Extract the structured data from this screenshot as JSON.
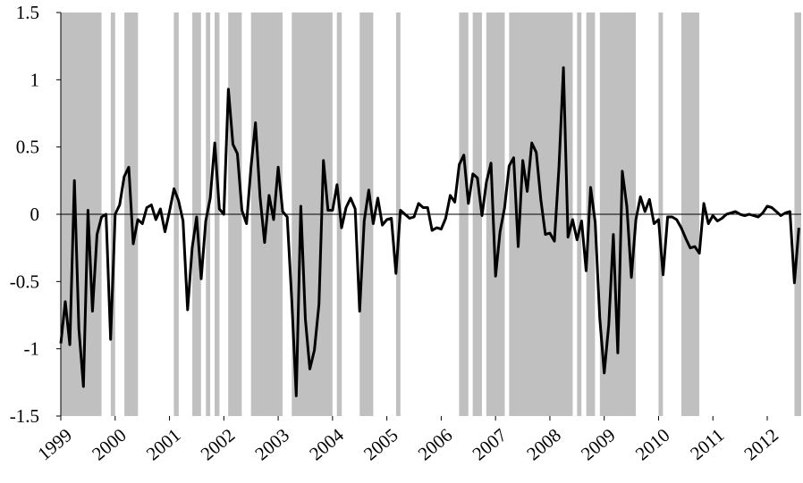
{
  "chart_data": {
    "type": "line",
    "title": "",
    "xlabel": "",
    "ylabel": "",
    "ylim": [
      -1.5,
      1.5
    ],
    "xlim": [
      1999.0,
      2012.625
    ],
    "y_ticks": [
      "1.5",
      "1",
      "0.5",
      "0",
      "-0.5",
      "-1",
      "-1.5"
    ],
    "y_tick_values": [
      1.5,
      1,
      0.5,
      0,
      -0.5,
      -1,
      -1.5
    ],
    "x_tick_labels": [
      "1999",
      "2000",
      "2001",
      "2002",
      "2003",
      "2004",
      "2005",
      "2006",
      "2007",
      "2008",
      "2009",
      "2010",
      "2011",
      "2012"
    ],
    "x_tick_values": [
      1999,
      2000,
      2001,
      2002,
      2003,
      2004,
      2005,
      2006,
      2007,
      2008,
      2009,
      2010,
      2011,
      2012
    ],
    "grid": false,
    "legend": "none",
    "colors": {
      "line": "#000000",
      "shading": "#c0c0c0",
      "background": "#ffffff"
    },
    "shaded_periods": [
      [
        1999.0,
        1999.75
      ],
      [
        1999.92,
        2000.0
      ],
      [
        2000.17,
        2000.42
      ],
      [
        2001.08,
        2001.17
      ],
      [
        2001.42,
        2001.58
      ],
      [
        2001.67,
        2001.75
      ],
      [
        2001.83,
        2001.92
      ],
      [
        2002.08,
        2002.33
      ],
      [
        2002.5,
        2003.08
      ],
      [
        2003.25,
        2004.0
      ],
      [
        2004.08,
        2004.17
      ],
      [
        2004.5,
        2004.75
      ],
      [
        2005.17,
        2005.25
      ],
      [
        2006.33,
        2006.5
      ],
      [
        2006.58,
        2006.75
      ],
      [
        2006.83,
        2007.17
      ],
      [
        2007.25,
        2008.42
      ],
      [
        2008.5,
        2008.58
      ],
      [
        2008.67,
        2008.83
      ],
      [
        2008.92,
        2009.58
      ],
      [
        2010.0,
        2010.08
      ],
      [
        2010.42,
        2010.75
      ],
      [
        2012.5,
        2012.625
      ]
    ],
    "series": [
      {
        "values": [
          [
            1999.0,
            -0.96
          ],
          [
            1999.083,
            -0.65
          ],
          [
            1999.167,
            -0.97
          ],
          [
            1999.25,
            0.25
          ],
          [
            1999.333,
            -0.85
          ],
          [
            1999.417,
            -1.28
          ],
          [
            1999.5,
            0.03
          ],
          [
            1999.583,
            -0.72
          ],
          [
            1999.667,
            -0.15
          ],
          [
            1999.75,
            -0.02
          ],
          [
            1999.833,
            0.0
          ],
          [
            1999.917,
            -0.93
          ],
          [
            2000.0,
            0.0
          ],
          [
            2000.083,
            0.07
          ],
          [
            2000.167,
            0.28
          ],
          [
            2000.25,
            0.35
          ],
          [
            2000.333,
            -0.22
          ],
          [
            2000.417,
            -0.04
          ],
          [
            2000.5,
            -0.07
          ],
          [
            2000.583,
            0.05
          ],
          [
            2000.667,
            0.07
          ],
          [
            2000.75,
            -0.04
          ],
          [
            2000.833,
            0.04
          ],
          [
            2000.917,
            -0.13
          ],
          [
            2001.0,
            0.02
          ],
          [
            2001.083,
            0.19
          ],
          [
            2001.167,
            0.1
          ],
          [
            2001.25,
            -0.05
          ],
          [
            2001.333,
            -0.71
          ],
          [
            2001.417,
            -0.25
          ],
          [
            2001.5,
            -0.02
          ],
          [
            2001.583,
            -0.48
          ],
          [
            2001.667,
            -0.05
          ],
          [
            2001.75,
            0.12
          ],
          [
            2001.833,
            0.53
          ],
          [
            2001.917,
            0.04
          ],
          [
            2002.0,
            0.0
          ],
          [
            2002.083,
            0.93
          ],
          [
            2002.167,
            0.52
          ],
          [
            2002.25,
            0.45
          ],
          [
            2002.333,
            0.03
          ],
          [
            2002.417,
            -0.07
          ],
          [
            2002.5,
            0.35
          ],
          [
            2002.583,
            0.68
          ],
          [
            2002.667,
            0.13
          ],
          [
            2002.75,
            -0.21
          ],
          [
            2002.833,
            0.14
          ],
          [
            2002.917,
            -0.04
          ],
          [
            2003.0,
            0.35
          ],
          [
            2003.083,
            0.02
          ],
          [
            2003.167,
            -0.02
          ],
          [
            2003.25,
            -0.64
          ],
          [
            2003.333,
            -1.35
          ],
          [
            2003.417,
            0.06
          ],
          [
            2003.5,
            -0.78
          ],
          [
            2003.583,
            -1.15
          ],
          [
            2003.667,
            -1.01
          ],
          [
            2003.75,
            -0.67
          ],
          [
            2003.833,
            0.4
          ],
          [
            2003.917,
            0.03
          ],
          [
            2004.0,
            0.03
          ],
          [
            2004.083,
            0.22
          ],
          [
            2004.167,
            -0.1
          ],
          [
            2004.25,
            0.05
          ],
          [
            2004.333,
            0.12
          ],
          [
            2004.417,
            0.04
          ],
          [
            2004.5,
            -0.72
          ],
          [
            2004.583,
            -0.05
          ],
          [
            2004.667,
            0.18
          ],
          [
            2004.75,
            -0.07
          ],
          [
            2004.833,
            0.12
          ],
          [
            2004.917,
            -0.08
          ],
          [
            2005.0,
            -0.04
          ],
          [
            2005.083,
            -0.03
          ],
          [
            2005.167,
            -0.44
          ],
          [
            2005.25,
            0.03
          ],
          [
            2005.333,
            0.0
          ],
          [
            2005.417,
            -0.03
          ],
          [
            2005.5,
            -0.02
          ],
          [
            2005.583,
            0.08
          ],
          [
            2005.667,
            0.05
          ],
          [
            2005.75,
            0.05
          ],
          [
            2005.833,
            -0.12
          ],
          [
            2005.917,
            -0.1
          ],
          [
            2006.0,
            -0.11
          ],
          [
            2006.083,
            -0.03
          ],
          [
            2006.167,
            0.14
          ],
          [
            2006.25,
            0.09
          ],
          [
            2006.333,
            0.37
          ],
          [
            2006.417,
            0.44
          ],
          [
            2006.5,
            0.08
          ],
          [
            2006.583,
            0.3
          ],
          [
            2006.667,
            0.27
          ],
          [
            2006.75,
            -0.01
          ],
          [
            2006.833,
            0.24
          ],
          [
            2006.917,
            0.38
          ],
          [
            2007.0,
            -0.46
          ],
          [
            2007.083,
            -0.13
          ],
          [
            2007.167,
            0.05
          ],
          [
            2007.25,
            0.36
          ],
          [
            2007.333,
            0.42
          ],
          [
            2007.417,
            -0.24
          ],
          [
            2007.5,
            0.4
          ],
          [
            2007.583,
            0.17
          ],
          [
            2007.667,
            0.53
          ],
          [
            2007.75,
            0.46
          ],
          [
            2007.833,
            0.11
          ],
          [
            2007.917,
            -0.15
          ],
          [
            2008.0,
            -0.14
          ],
          [
            2008.083,
            -0.2
          ],
          [
            2008.167,
            0.35
          ],
          [
            2008.25,
            1.09
          ],
          [
            2008.333,
            -0.17
          ],
          [
            2008.417,
            -0.04
          ],
          [
            2008.5,
            -0.19
          ],
          [
            2008.583,
            -0.05
          ],
          [
            2008.667,
            -0.42
          ],
          [
            2008.75,
            0.2
          ],
          [
            2008.833,
            -0.06
          ],
          [
            2008.917,
            -0.77
          ],
          [
            2009.0,
            -1.18
          ],
          [
            2009.083,
            -0.82
          ],
          [
            2009.167,
            -0.15
          ],
          [
            2009.25,
            -1.03
          ],
          [
            2009.333,
            0.32
          ],
          [
            2009.417,
            0.06
          ],
          [
            2009.5,
            -0.47
          ],
          [
            2009.583,
            -0.04
          ],
          [
            2009.667,
            0.13
          ],
          [
            2009.75,
            0.02
          ],
          [
            2009.833,
            0.11
          ],
          [
            2009.917,
            -0.07
          ],
          [
            2010.0,
            -0.04
          ],
          [
            2010.083,
            -0.45
          ],
          [
            2010.167,
            -0.02
          ],
          [
            2010.25,
            -0.02
          ],
          [
            2010.333,
            -0.04
          ],
          [
            2010.417,
            -0.1
          ],
          [
            2010.5,
            -0.18
          ],
          [
            2010.583,
            -0.25
          ],
          [
            2010.667,
            -0.24
          ],
          [
            2010.75,
            -0.29
          ],
          [
            2010.833,
            0.08
          ],
          [
            2010.917,
            -0.07
          ],
          [
            2011.0,
            -0.01
          ],
          [
            2011.083,
            -0.05
          ],
          [
            2011.167,
            -0.03
          ],
          [
            2011.25,
            0.0
          ],
          [
            2011.333,
            0.01
          ],
          [
            2011.417,
            0.02
          ],
          [
            2011.5,
            0.0
          ],
          [
            2011.583,
            -0.01
          ],
          [
            2011.667,
            0.0
          ],
          [
            2011.75,
            -0.01
          ],
          [
            2011.833,
            -0.02
          ],
          [
            2011.917,
            0.01
          ],
          [
            2012.0,
            0.06
          ],
          [
            2012.083,
            0.05
          ],
          [
            2012.167,
            0.02
          ],
          [
            2012.25,
            -0.01
          ],
          [
            2012.333,
            0.01
          ],
          [
            2012.417,
            0.02
          ],
          [
            2012.5,
            -0.51
          ],
          [
            2012.583,
            -0.1
          ]
        ]
      }
    ]
  }
}
